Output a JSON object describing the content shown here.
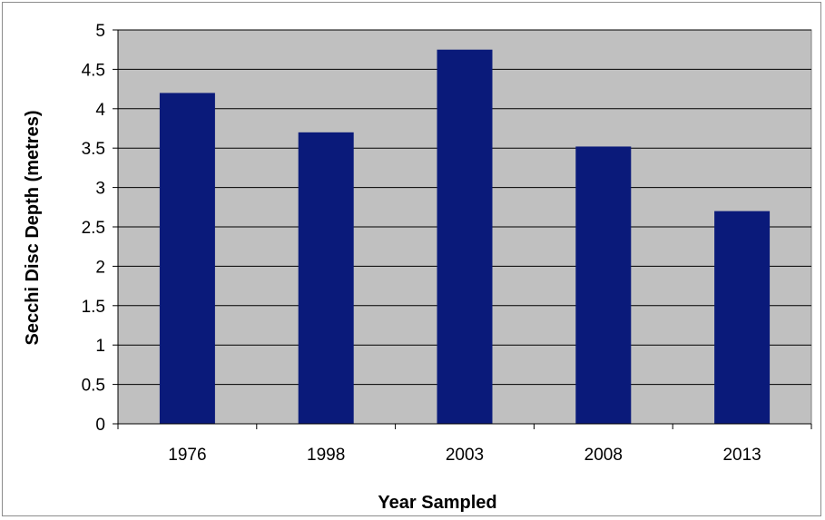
{
  "chart_data": {
    "type": "bar",
    "title": "",
    "xlabel": "Year Sampled",
    "ylabel": "Secchi Disc Depth (metres)",
    "categories": [
      "1976",
      "1998",
      "2003",
      "2008",
      "2013"
    ],
    "values": [
      4.2,
      3.7,
      4.75,
      3.52,
      2.7
    ],
    "ylim": [
      0,
      5
    ],
    "yticks": [
      0,
      0.5,
      1,
      1.5,
      2,
      2.5,
      3,
      3.5,
      4,
      4.5,
      5
    ],
    "ytick_labels": [
      "0",
      "0.5",
      "1",
      "1.5",
      "2",
      "2.5",
      "3",
      "3.5",
      "4",
      "4.5",
      "5"
    ],
    "grid": true,
    "legend": "none",
    "colors": {
      "bar": "#0a1a7a",
      "plot_background": "#c0c0c0",
      "gridline": "#000000"
    }
  }
}
